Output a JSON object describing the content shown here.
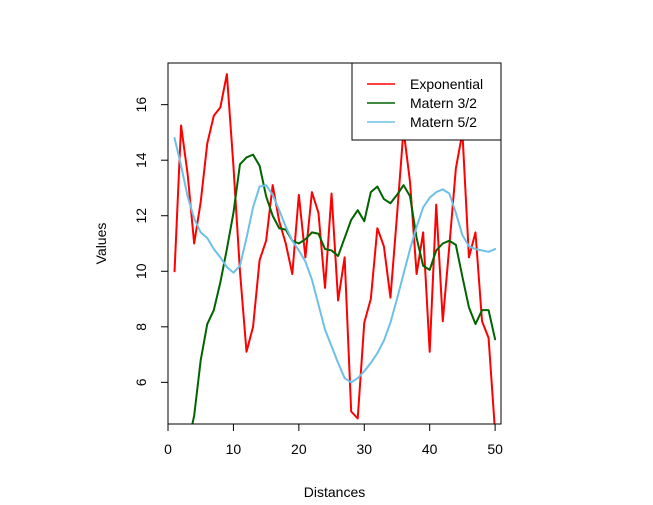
{
  "chart_data": {
    "type": "line",
    "title": "",
    "xlabel": "Distances",
    "ylabel": "Values",
    "xlim": [
      1,
      50
    ],
    "ylim": [
      4.5,
      17.5
    ],
    "xticks": [
      0,
      10,
      20,
      30,
      40,
      50
    ],
    "yticks": [
      6,
      8,
      10,
      12,
      14,
      16
    ],
    "grid": false,
    "legend_position": "top-right",
    "x": [
      1,
      2,
      3,
      4,
      5,
      6,
      7,
      8,
      9,
      10,
      11,
      12,
      13,
      14,
      15,
      16,
      17,
      18,
      19,
      20,
      21,
      22,
      23,
      24,
      25,
      26,
      27,
      28,
      29,
      30,
      31,
      32,
      33,
      34,
      35,
      36,
      37,
      38,
      39,
      40,
      41,
      42,
      43,
      44,
      45,
      46,
      47,
      48,
      49,
      50
    ],
    "series": [
      {
        "name": "Exponential",
        "color": "#ff0000",
        "values": [
          10.0,
          15.25,
          13.5,
          11.0,
          12.5,
          14.6,
          15.6,
          15.9,
          17.1,
          13.8,
          10.0,
          7.1,
          8.0,
          10.4,
          11.1,
          13.1,
          11.8,
          11.0,
          9.9,
          12.75,
          10.5,
          12.85,
          12.1,
          9.4,
          12.8,
          8.95,
          10.5,
          4.95,
          4.7,
          8.15,
          9.0,
          11.55,
          10.9,
          9.05,
          12.0,
          15.1,
          13.2,
          9.9,
          11.4,
          7.1,
          12.4,
          8.2,
          10.9,
          13.7,
          15.0,
          10.5,
          11.4,
          8.2,
          7.6,
          4.2
        ]
      },
      {
        "name": "Matern 3/2",
        "color": "#006400",
        "values": [
          3.5,
          3.3,
          3.7,
          4.8,
          6.8,
          8.1,
          8.6,
          9.6,
          10.8,
          12.1,
          13.85,
          14.1,
          14.2,
          13.8,
          12.7,
          12.0,
          11.55,
          11.5,
          11.1,
          11.0,
          11.15,
          11.4,
          11.35,
          10.8,
          10.75,
          10.55,
          11.2,
          11.85,
          12.2,
          11.8,
          12.85,
          13.05,
          12.6,
          12.45,
          12.75,
          13.1,
          12.7,
          11.2,
          10.2,
          10.05,
          10.75,
          11.0,
          11.1,
          10.95,
          9.8,
          8.7,
          8.1,
          8.6,
          8.6,
          7.55
        ]
      },
      {
        "name": "Matern 5/2",
        "color": "#6ec0e6",
        "values": [
          14.8,
          13.8,
          12.7,
          11.9,
          11.4,
          11.2,
          10.8,
          10.5,
          10.15,
          9.95,
          10.2,
          11.2,
          12.3,
          13.05,
          13.1,
          12.75,
          12.2,
          11.6,
          11.1,
          10.75,
          10.35,
          9.7,
          8.8,
          7.9,
          7.3,
          6.7,
          6.15,
          6.0,
          6.15,
          6.4,
          6.7,
          7.05,
          7.5,
          8.15,
          9.0,
          9.9,
          10.8,
          11.6,
          12.3,
          12.65,
          12.85,
          12.95,
          12.8,
          12.1,
          11.3,
          10.9,
          10.8,
          10.75,
          10.7,
          10.8
        ]
      }
    ]
  }
}
